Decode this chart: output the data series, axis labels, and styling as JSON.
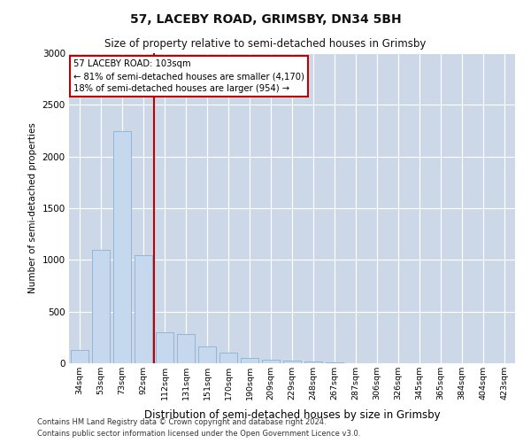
{
  "title": "57, LACEBY ROAD, GRIMSBY, DN34 5BH",
  "subtitle": "Size of property relative to semi-detached houses in Grimsby",
  "xlabel": "Distribution of semi-detached houses by size in Grimsby",
  "ylabel": "Number of semi-detached properties",
  "footnote1": "Contains HM Land Registry data © Crown copyright and database right 2024.",
  "footnote2": "Contains public sector information licensed under the Open Government Licence v3.0.",
  "annotation_title": "57 LACEBY ROAD: 103sqm",
  "annotation_line1": "← 81% of semi-detached houses are smaller (4,170)",
  "annotation_line2": "18% of semi-detached houses are larger (954) →",
  "bar_color": "#c5d8ed",
  "bar_edge_color": "#8db4d8",
  "red_line_color": "#c00000",
  "annotation_box_color": "#ffffff",
  "annotation_box_edge": "#c00000",
  "background_color": "#ffffff",
  "grid_color": "#ccd8e8",
  "categories": [
    "34sqm",
    "53sqm",
    "73sqm",
    "92sqm",
    "112sqm",
    "131sqm",
    "151sqm",
    "170sqm",
    "190sqm",
    "209sqm",
    "229sqm",
    "248sqm",
    "267sqm",
    "287sqm",
    "306sqm",
    "326sqm",
    "345sqm",
    "365sqm",
    "384sqm",
    "404sqm",
    "423sqm"
  ],
  "values": [
    130,
    1100,
    2250,
    1050,
    300,
    280,
    160,
    100,
    55,
    38,
    22,
    14,
    5,
    2,
    1,
    0,
    0,
    0,
    0,
    0,
    0
  ],
  "red_line_x": 3.5,
  "ylim": [
    0,
    3000
  ],
  "yticks": [
    0,
    500,
    1000,
    1500,
    2000,
    2500,
    3000
  ]
}
